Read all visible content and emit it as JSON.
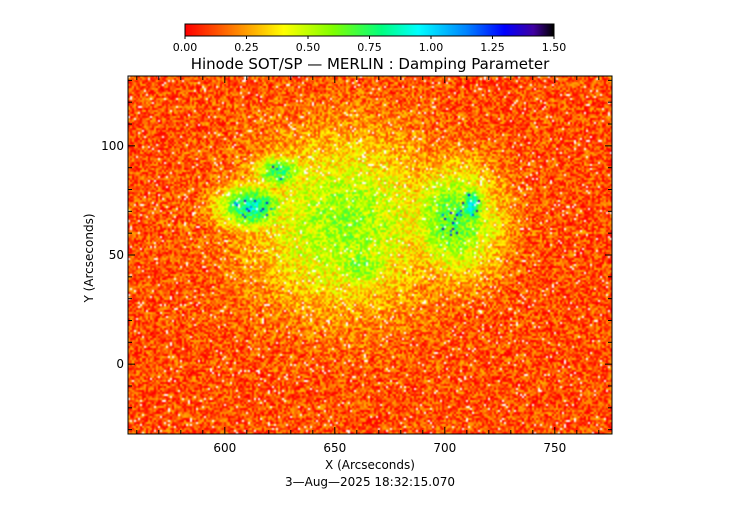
{
  "chart_data": {
    "type": "heatmap",
    "title": "Hinode SOT/SP — MERLIN : Damping Parameter",
    "xlabel": "X (Arcseconds)",
    "ylabel": "Y (Arcseconds)",
    "footer": "3—Aug—2025 18:32:15.070",
    "xlim": [
      556,
      776
    ],
    "ylim": [
      -32,
      132
    ],
    "x_ticks": [
      600,
      650,
      700,
      750
    ],
    "y_ticks": [
      0,
      50,
      100
    ],
    "colorbar": {
      "range": [
        0.0,
        1.5
      ],
      "tick_values": [
        0.0,
        0.25,
        0.5,
        0.75,
        1.0,
        1.25,
        1.5
      ],
      "tick_labels": [
        "0.00",
        "0.25",
        "0.50",
        "0.75",
        "1.00",
        "1.25",
        "1.50"
      ],
      "stops": [
        {
          "value": 0.0,
          "color": "#ff0000"
        },
        {
          "value": 0.2,
          "color": "#ff8000"
        },
        {
          "value": 0.4,
          "color": "#ffff00"
        },
        {
          "value": 0.6,
          "color": "#80ff00"
        },
        {
          "value": 0.8,
          "color": "#00ff80"
        },
        {
          "value": 0.95,
          "color": "#00ffff"
        },
        {
          "value": 1.15,
          "color": "#0080ff"
        },
        {
          "value": 1.3,
          "color": "#0000ff"
        },
        {
          "value": 1.42,
          "color": "#4000a0"
        },
        {
          "value": 1.5,
          "color": "#000000"
        }
      ]
    },
    "features": [
      {
        "x": 655,
        "y": 65,
        "rx": 42,
        "ry": 38,
        "peak": 0.45
      },
      {
        "x": 612,
        "y": 72,
        "rx": 15,
        "ry": 10,
        "peak": 0.75
      },
      {
        "x": 704,
        "y": 66,
        "rx": 21,
        "ry": 25,
        "peak": 0.55
      },
      {
        "x": 712,
        "y": 72,
        "rx": 6,
        "ry": 9,
        "peak": 0.8
      },
      {
        "x": 625,
        "y": 88,
        "rx": 12,
        "ry": 8,
        "peak": 0.6
      },
      {
        "x": 662,
        "y": 45,
        "rx": 16,
        "ry": 10,
        "peak": 0.5
      }
    ]
  }
}
